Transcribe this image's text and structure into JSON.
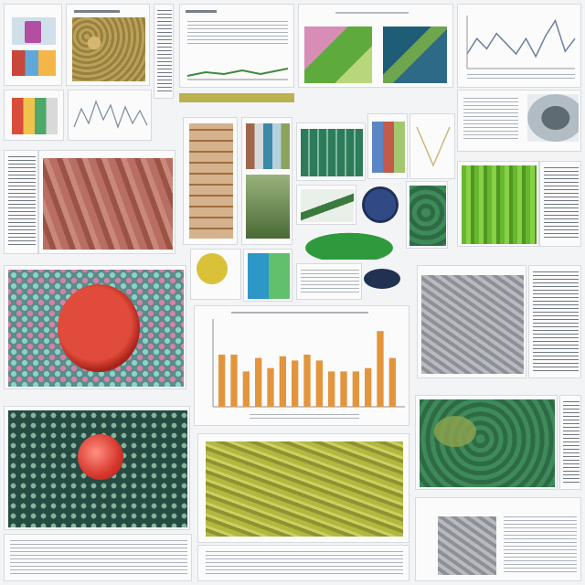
{
  "collage": {
    "description_free": true
  },
  "center_chart": {
    "bars": [
      0.62,
      0.62,
      0.42,
      0.58,
      0.46,
      0.6,
      0.55,
      0.62,
      0.55,
      0.42,
      0.42,
      0.42,
      0.46,
      0.9,
      0.58
    ],
    "bar_color": "#e3953d",
    "axis_color": "#8f8f8f"
  },
  "top_right_line": {
    "points": [
      0.25,
      0.55,
      0.35,
      0.65,
      0.45,
      0.25,
      0.55,
      0.2,
      0.6,
      0.9,
      0.3,
      0.55
    ]
  },
  "small_wave": {
    "points": [
      0.2,
      0.7,
      0.3,
      0.9,
      0.4,
      0.8,
      0.2,
      0.75,
      0.3,
      0.65,
      0.25
    ]
  }
}
